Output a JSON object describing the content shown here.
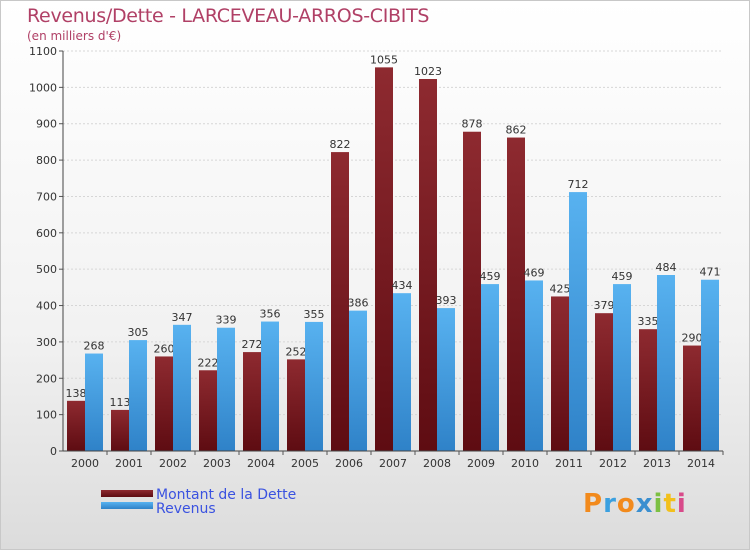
{
  "title": "Revenus/Dette - LARCEVEAU-ARROS-CIBITS",
  "subtitle": "(en milliers d'€)",
  "logo_text": "Proxiti",
  "colors": {
    "dette": "#7a1a1f",
    "dette_light": "#9a2c33",
    "revenus": "#4aa3e6",
    "revenus_dark": "#2b7cc2",
    "title": "#b04066",
    "legend_text": "#3a52e0"
  },
  "legend": [
    {
      "label": "Montant de la Dette",
      "color": "#7a1a1f"
    },
    {
      "label": "Revenus",
      "color": "#4aa3e6"
    }
  ],
  "chart_data": {
    "type": "bar",
    "title": "Revenus/Dette - LARCEVEAU-ARROS-CIBITS",
    "subtitle": "(en milliers d'€)",
    "xlabel": "",
    "ylabel": "",
    "ylim": [
      0,
      1100
    ],
    "yticks": [
      0,
      100,
      200,
      300,
      400,
      500,
      600,
      700,
      800,
      900,
      1000,
      1100
    ],
    "grid": true,
    "legend_position": "bottom-left",
    "categories": [
      "2000",
      "2001",
      "2002",
      "2003",
      "2004",
      "2005",
      "2006",
      "2007",
      "2008",
      "2009",
      "2010",
      "2011",
      "2012",
      "2013",
      "2014"
    ],
    "series": [
      {
        "name": "Montant de la Dette",
        "values": [
          138,
          113,
          260,
          222,
          272,
          252,
          822,
          1055,
          1023,
          878,
          862,
          425,
          379,
          335,
          290
        ]
      },
      {
        "name": "Revenus",
        "values": [
          268,
          305,
          347,
          339,
          356,
          355,
          386,
          434,
          393,
          459,
          469,
          712,
          459,
          484,
          471
        ]
      }
    ]
  }
}
